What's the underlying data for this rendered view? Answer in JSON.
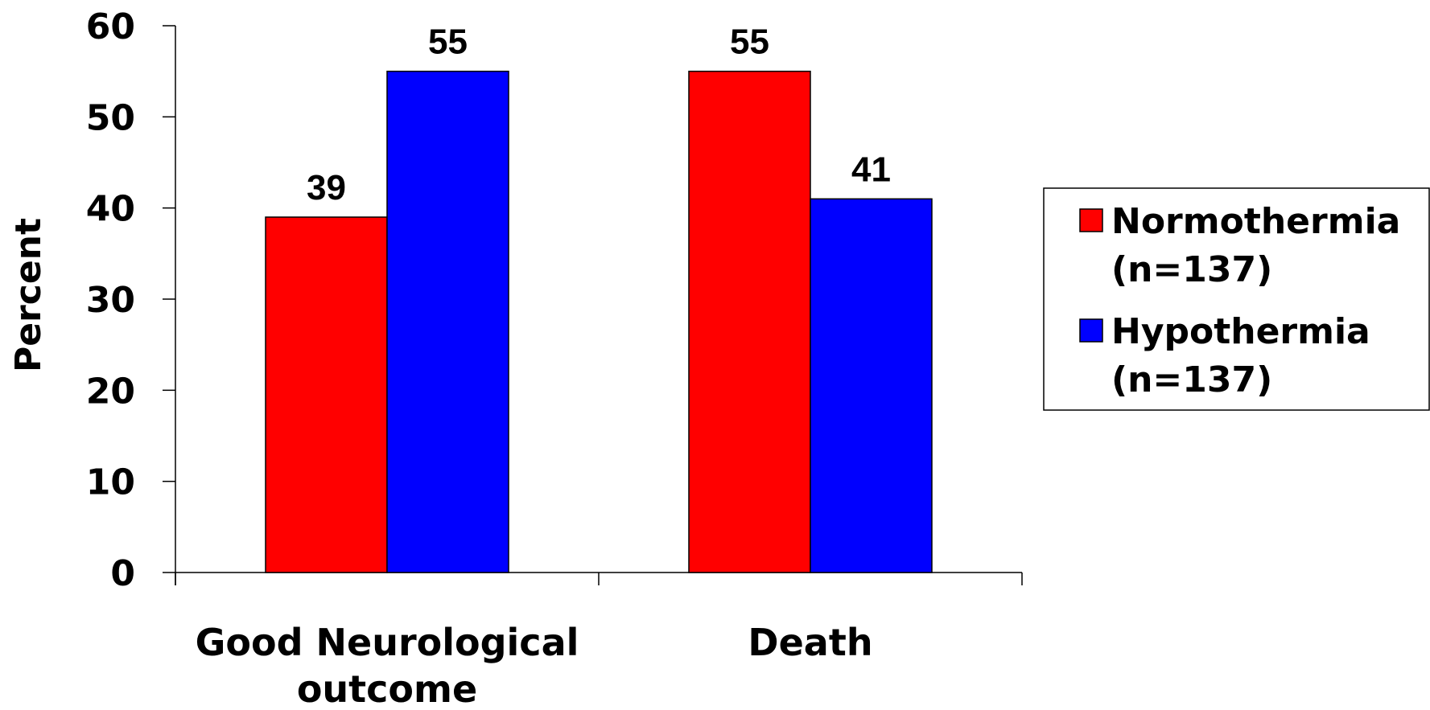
{
  "chart_data": {
    "type": "bar",
    "title": "",
    "xlabel": "",
    "ylabel": "Percent",
    "ylim": [
      0,
      60
    ],
    "yticks": [
      0,
      10,
      20,
      30,
      40,
      50,
      60
    ],
    "categories": [
      [
        "Good Neurological",
        "outcome"
      ],
      [
        "Death"
      ]
    ],
    "series": [
      {
        "name": [
          "Normothermia",
          "(n=137)"
        ],
        "color": "#ff0000",
        "values": [
          39,
          55
        ]
      },
      {
        "name": [
          "Hypothermia",
          "(n=137)"
        ],
        "color": "#0000ff",
        "values": [
          55,
          41
        ]
      }
    ],
    "legend_position": "right",
    "grid": false
  }
}
